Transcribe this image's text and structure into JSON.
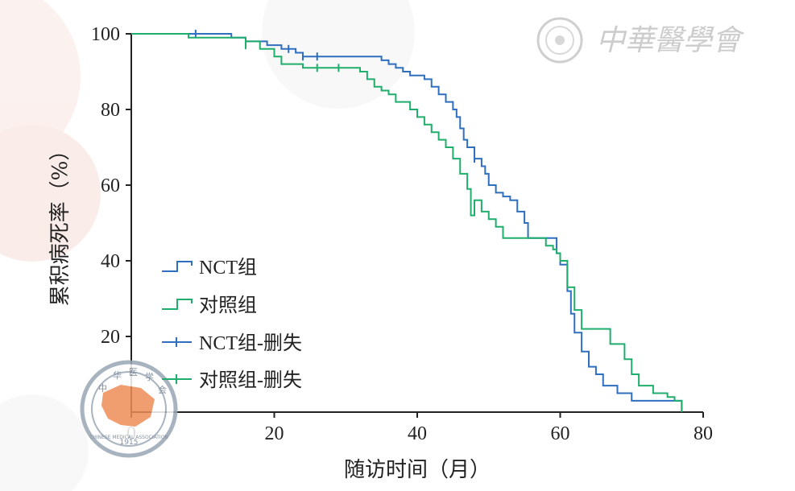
{
  "watermark": {
    "text": "中華醫學會",
    "seal_text": "CHINESE MEDICAL ASSOCIATION",
    "seal_year": "1915",
    "seal_chars": [
      "中",
      "华",
      "医",
      "学",
      "会"
    ]
  },
  "chart_data": {
    "type": "line",
    "step": true,
    "xlabel": "随访时间（月）",
    "ylabel": "累积病死率（%）",
    "xlim": [
      0,
      80
    ],
    "ylim": [
      0,
      100
    ],
    "xticks": [
      0,
      20,
      40,
      60,
      80
    ],
    "yticks": [
      0,
      20,
      40,
      60,
      80,
      100
    ],
    "legend_position": "lower-left",
    "colors": {
      "nct": "#2e6fbf",
      "control": "#1fae6c"
    },
    "legend": [
      "NCT组",
      "对照组",
      "NCT组-删失",
      "对照组-删失"
    ],
    "series": [
      {
        "name": "NCT组",
        "points": [
          [
            0,
            100
          ],
          [
            13,
            100
          ],
          [
            14,
            99
          ],
          [
            16,
            98
          ],
          [
            19,
            97
          ],
          [
            21,
            96
          ],
          [
            23,
            95
          ],
          [
            24,
            94
          ],
          [
            34,
            94
          ],
          [
            35,
            93
          ],
          [
            36,
            92
          ],
          [
            37,
            91
          ],
          [
            38,
            90
          ],
          [
            39,
            89
          ],
          [
            41,
            88
          ],
          [
            42,
            86
          ],
          [
            43,
            84
          ],
          [
            44,
            82
          ],
          [
            45,
            80
          ],
          [
            45.5,
            78
          ],
          [
            46,
            75
          ],
          [
            46.5,
            72
          ],
          [
            47,
            70
          ],
          [
            48,
            67
          ],
          [
            49,
            65
          ],
          [
            49.5,
            63
          ],
          [
            50,
            60
          ],
          [
            51,
            58
          ],
          [
            52,
            57
          ],
          [
            53,
            56
          ],
          [
            54,
            53
          ],
          [
            55,
            50
          ],
          [
            55.5,
            46
          ],
          [
            59,
            46
          ],
          [
            59.5,
            42
          ],
          [
            60,
            39
          ],
          [
            61,
            32
          ],
          [
            61.5,
            26
          ],
          [
            62,
            21
          ],
          [
            63,
            16
          ],
          [
            64,
            12
          ],
          [
            65,
            10
          ],
          [
            66,
            7
          ],
          [
            68,
            5
          ],
          [
            70,
            3
          ],
          [
            77,
            2
          ],
          [
            77,
            0
          ]
        ],
        "censored": [
          [
            9,
            100
          ],
          [
            16,
            98
          ],
          [
            22,
            96
          ],
          [
            24,
            94
          ],
          [
            26,
            94
          ],
          [
            48,
            67
          ]
        ]
      },
      {
        "name": "对照组",
        "points": [
          [
            0,
            100
          ],
          [
            8,
            99
          ],
          [
            16,
            98
          ],
          [
            18,
            96
          ],
          [
            20,
            94
          ],
          [
            21,
            92
          ],
          [
            24,
            91
          ],
          [
            32,
            90
          ],
          [
            33,
            88
          ],
          [
            34,
            86
          ],
          [
            35,
            85
          ],
          [
            36,
            84
          ],
          [
            37,
            82
          ],
          [
            39,
            80
          ],
          [
            40,
            78
          ],
          [
            41,
            76
          ],
          [
            42,
            74
          ],
          [
            43,
            72
          ],
          [
            44,
            70
          ],
          [
            45,
            67
          ],
          [
            46,
            63
          ],
          [
            47,
            59
          ],
          [
            47.5,
            52
          ],
          [
            48,
            56
          ],
          [
            49,
            53
          ],
          [
            50,
            51
          ],
          [
            51,
            49
          ],
          [
            52,
            46
          ],
          [
            55,
            46
          ],
          [
            58,
            44
          ],
          [
            59,
            43
          ],
          [
            59.5,
            42
          ],
          [
            60,
            40
          ],
          [
            61,
            33
          ],
          [
            62,
            27
          ],
          [
            63,
            22
          ],
          [
            67,
            18
          ],
          [
            69,
            14
          ],
          [
            70,
            10
          ],
          [
            71,
            7
          ],
          [
            73,
            5
          ],
          [
            75,
            4
          ],
          [
            76,
            3
          ],
          [
            77,
            2
          ],
          [
            77,
            0
          ]
        ],
        "censored": [
          [
            16,
            97
          ],
          [
            26,
            91
          ],
          [
            29,
            91
          ]
        ]
      }
    ]
  }
}
